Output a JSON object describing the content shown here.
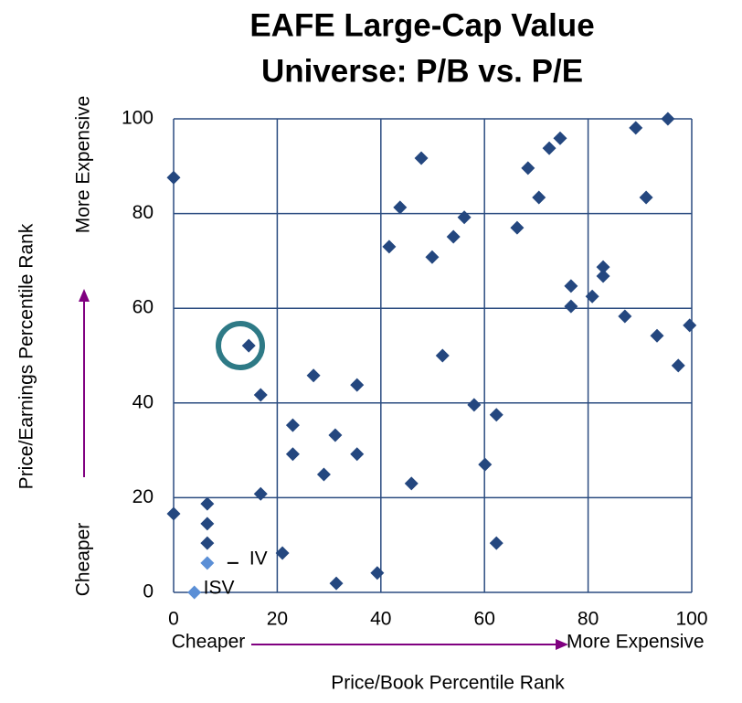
{
  "chart_data": {
    "type": "scatter",
    "title": [
      "EAFE Large-Cap Value",
      "Universe: P/B vs. P/E"
    ],
    "x_label": "Price/Book Percentile Rank",
    "y_label": "Price/Earnings Percentile Rank",
    "x_annotations": [
      "Cheaper",
      "More Expensive"
    ],
    "y_annotations": [
      "Cheaper",
      "More Expensive"
    ],
    "xlim": [
      0,
      100
    ],
    "xticks": [
      0,
      20,
      40,
      60,
      80,
      100
    ],
    "ylim": [
      0,
      100
    ],
    "yticks": [
      0,
      20,
      40,
      60,
      80,
      100
    ],
    "grid": true,
    "series": [
      {
        "color": "#24477f",
        "x": [
          0,
          0,
          6.5,
          6.5,
          6.5,
          14.5,
          16.8,
          16.8,
          21,
          23,
          23,
          27,
          29,
          31.2,
          31.4,
          35.4,
          35.4,
          39.3,
          41.6,
          43.7,
          45.9,
          47.8,
          49.9,
          51.9,
          54,
          56.1,
          58,
          60.1,
          62.3,
          62.3,
          66.3,
          68.4,
          70.5,
          72.5,
          74.6,
          76.7,
          76.7,
          80.8,
          82.9,
          82.9,
          87.1,
          89.2,
          91.2,
          93.3,
          95.4,
          97.4,
          99.6
        ],
        "values": [
          87.6,
          16.6,
          18.7,
          14.5,
          10.4,
          52.1,
          41.7,
          20.8,
          8.3,
          35.3,
          29.2,
          45.8,
          24.9,
          33.2,
          1.9,
          43.8,
          29.2,
          4.1,
          73,
          81.3,
          23,
          91.7,
          70.8,
          50,
          75.1,
          79.2,
          39.6,
          27,
          37.5,
          10.4,
          77,
          89.6,
          83.4,
          93.8,
          95.9,
          64.7,
          60.4,
          62.5,
          66.8,
          68.7,
          58.3,
          98.1,
          83.4,
          54.2,
          100,
          47.9,
          56.4
        ]
      },
      {
        "name": "IV",
        "color": "#5b8fd6",
        "x": [
          6.5
        ],
        "values": [
          6.2
        ]
      },
      {
        "name": "ISV",
        "color": "#5b8fd6",
        "x": [
          4
        ],
        "values": [
          0
        ]
      }
    ]
  }
}
